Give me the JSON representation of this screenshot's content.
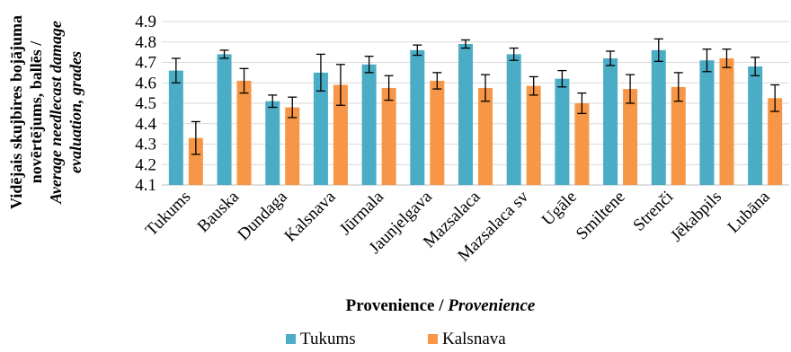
{
  "chart_data": {
    "type": "bar",
    "ylabel_lines": [
      "Vidējais skujbires bojājuma",
      "novērtējums, ballēs /",
      "Average needlecast damage",
      "evaluation, grades"
    ],
    "xlabel": "Provenience / ",
    "xlabel_italic": "Provenience",
    "ylim": [
      4.1,
      4.9
    ],
    "yticks": [
      "4.1",
      "4.2",
      "4.3",
      "4.4",
      "4.5",
      "4.6",
      "4.7",
      "4.8",
      "4.9"
    ],
    "grid": true,
    "legend_position": "bottom",
    "categories": [
      "Tukums",
      "Bauska",
      "Dundaga",
      "Kalsnava",
      "Jūrmala",
      "Jaunjelgava",
      "Mazsalaca",
      "Mazsalaca sv",
      "Ugāle",
      "Smiltene",
      "Strenči",
      "Jēkabpils",
      "Lubāna"
    ],
    "series": [
      {
        "name": "Tukums",
        "color": "#4BACC6",
        "values": [
          4.66,
          4.74,
          4.51,
          4.65,
          4.69,
          4.76,
          4.79,
          4.74,
          4.62,
          4.72,
          4.76,
          4.71,
          4.68
        ],
        "errors": [
          0.06,
          0.02,
          0.03,
          0.09,
          0.04,
          0.025,
          0.02,
          0.03,
          0.04,
          0.035,
          0.055,
          0.055,
          0.045
        ]
      },
      {
        "name": "Kalsnava",
        "color": "#F79646",
        "values": [
          4.33,
          4.61,
          4.48,
          4.59,
          4.575,
          4.61,
          4.575,
          4.585,
          4.5,
          4.57,
          4.58,
          4.72,
          4.525
        ],
        "errors": [
          0.08,
          0.06,
          0.05,
          0.1,
          0.06,
          0.04,
          0.065,
          0.045,
          0.05,
          0.07,
          0.07,
          0.045,
          0.065
        ]
      }
    ]
  }
}
